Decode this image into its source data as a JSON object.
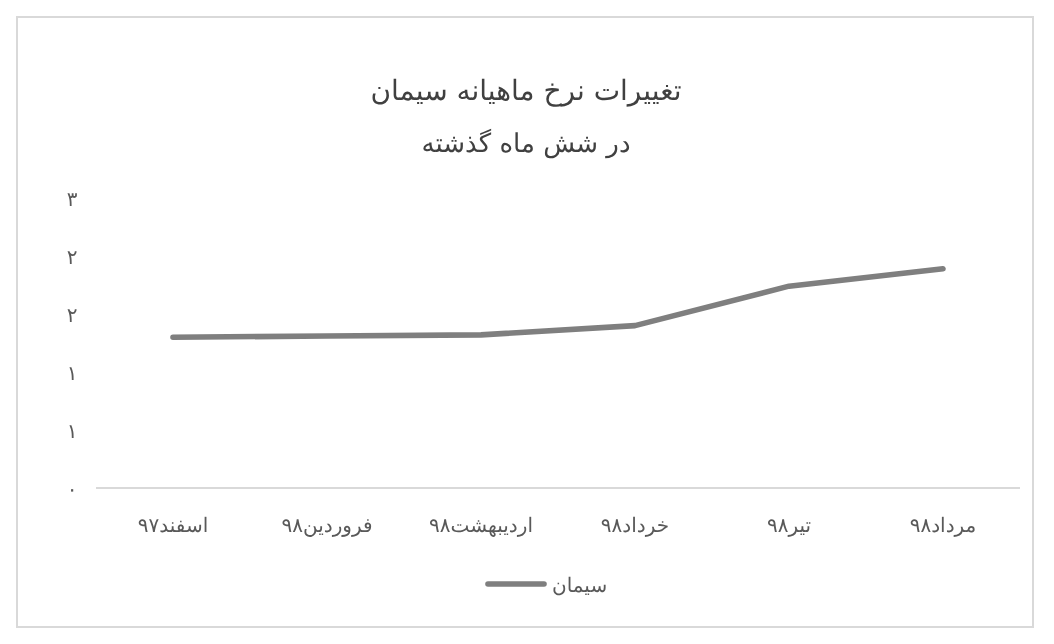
{
  "chart_data": {
    "type": "line",
    "title": "تغییرات نرخ ماهیانه سیمان",
    "subtitle": "در شش ماه گذشته",
    "categories": [
      "اسفند۹۷",
      "فروردین۹۸",
      "اردیبهشت۹۸",
      "خرداد۹۸",
      "تیر۹۸",
      "مرداد۹۸"
    ],
    "series": [
      {
        "name": "سیمان",
        "color": "#7f7f7f",
        "values": [
          1.3,
          1.31,
          1.32,
          1.4,
          1.74,
          1.89
        ]
      }
    ],
    "ylim": [
      0,
      2.5
    ],
    "yticks": [
      {
        "value": 0,
        "label": "۰"
      },
      {
        "value": 0.5,
        "label": "۱"
      },
      {
        "value": 1,
        "label": "۱"
      },
      {
        "value": 1.5,
        "label": "۲"
      },
      {
        "value": 2,
        "label": "۲"
      },
      {
        "value": 2.5,
        "label": "۳"
      }
    ],
    "legend": "bottom"
  }
}
